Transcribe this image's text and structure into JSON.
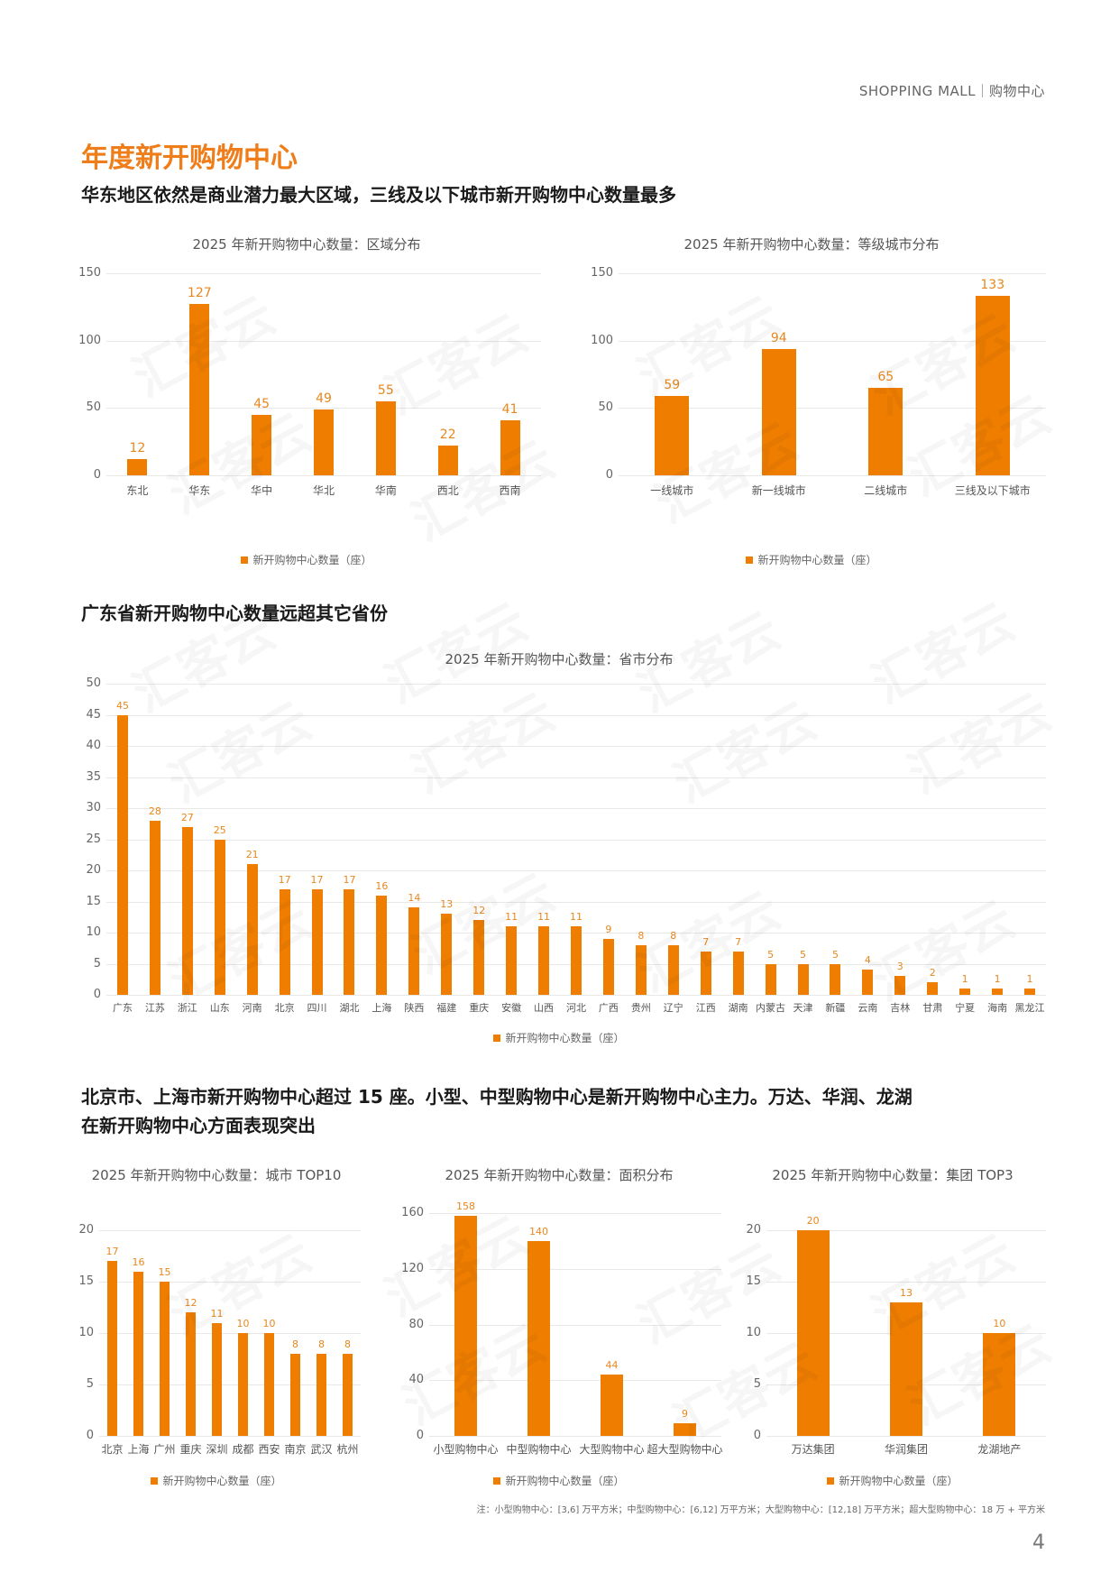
{
  "header": {
    "tag_en": "SHOPPING MALL",
    "tag_cn": "购物中心"
  },
  "page_title": "年度新开购物中心",
  "sections": {
    "s1_heading": "华东地区依然是商业潜力最大区域，三线及以下城市新开购物中心数量最多",
    "s2_heading": "广东省新开购物中心数量远超其它省份",
    "s3_heading_line1": "北京市、上海市新开购物中心超过 15 座。小型、中型购物中心是新开购物中心主力。万达、华润、龙湖",
    "s3_heading_line2": "在新开购物中心方面表现突出"
  },
  "watermark_text": "汇客云",
  "legend_label": "新开购物中心数量（座）",
  "footnote": "注：小型购物中心：[3,6] 万平方米；中型购物中心：[6,12] 万平方米；大型购物中心：[12,18] 万平方米；超大型购物中心：18 万 + 平方米",
  "page_number": "4",
  "colors": {
    "accent": "#ee7d1a",
    "bar": "#ee7d00",
    "label": "#e8871e"
  },
  "chart_data": [
    {
      "id": "region",
      "type": "bar",
      "title": "2025 年新开购物中心数量：区域分布",
      "categories": [
        "东北",
        "华东",
        "华中",
        "华北",
        "华南",
        "西北",
        "西南"
      ],
      "values": [
        12,
        127,
        45,
        49,
        55,
        22,
        41
      ],
      "yticks": [
        0,
        50,
        100,
        150
      ],
      "ylim": [
        0,
        150
      ],
      "legend": "新开购物中心数量（座）",
      "xlabel": "",
      "ylabel": "",
      "grid": true,
      "legend_position": "bottom"
    },
    {
      "id": "tier",
      "type": "bar",
      "title": "2025 年新开购物中心数量：等级城市分布",
      "categories": [
        "一线城市",
        "新一线城市",
        "二线城市",
        "三线及以下城市"
      ],
      "values": [
        59,
        94,
        65,
        133
      ],
      "yticks": [
        0,
        50,
        100,
        150
      ],
      "ylim": [
        0,
        150
      ],
      "legend": "新开购物中心数量（座）",
      "xlabel": "",
      "ylabel": "",
      "grid": true,
      "legend_position": "bottom"
    },
    {
      "id": "province",
      "type": "bar",
      "title": "2025 年新开购物中心数量：省市分布",
      "categories": [
        "广东",
        "江苏",
        "浙江",
        "山东",
        "河南",
        "北京",
        "四川",
        "湖北",
        "上海",
        "陕西",
        "福建",
        "重庆",
        "安徽",
        "山西",
        "河北",
        "广西",
        "贵州",
        "辽宁",
        "江西",
        "湖南",
        "内蒙古",
        "天津",
        "新疆",
        "云南",
        "吉林",
        "甘肃",
        "宁夏",
        "海南",
        "黑龙江"
      ],
      "values": [
        45,
        28,
        27,
        25,
        21,
        17,
        17,
        17,
        16,
        14,
        13,
        12,
        11,
        11,
        11,
        9,
        8,
        8,
        7,
        7,
        5,
        5,
        5,
        4,
        3,
        2,
        1,
        1,
        1
      ],
      "yticks": [
        0,
        5,
        10,
        15,
        20,
        25,
        30,
        35,
        40,
        45,
        50
      ],
      "ylim": [
        0,
        50
      ],
      "legend": "新开购物中心数量（座）",
      "xlabel": "",
      "ylabel": "",
      "grid": true,
      "legend_position": "bottom"
    },
    {
      "id": "city",
      "type": "bar",
      "title": "2025 年新开购物中心数量：城市 TOP10",
      "categories": [
        "北京",
        "上海",
        "广州",
        "重庆",
        "深圳",
        "成都",
        "西安",
        "南京",
        "武汉",
        "杭州"
      ],
      "values": [
        17,
        16,
        15,
        12,
        11,
        10,
        10,
        8,
        8,
        8
      ],
      "yticks": [
        0,
        5,
        10,
        15,
        20
      ],
      "ylim": [
        0,
        20
      ],
      "legend": "新开购物中心数量（座）",
      "xlabel": "",
      "ylabel": "",
      "grid": true,
      "legend_position": "bottom"
    },
    {
      "id": "area",
      "type": "bar",
      "title": "2025 年新开购物中心数量：面积分布",
      "categories": [
        "小型购物中心",
        "中型购物中心",
        "大型购物中心",
        "超大型购物中心"
      ],
      "values": [
        158,
        140,
        44,
        9
      ],
      "yticks": [
        0,
        40,
        80,
        120,
        160
      ],
      "ylim": [
        0,
        160
      ],
      "legend": "新开购物中心数量（座）",
      "xlabel": "",
      "ylabel": "",
      "grid": true,
      "legend_position": "bottom"
    },
    {
      "id": "group",
      "type": "bar",
      "title": "2025 年新开购物中心数量：集团 TOP3",
      "categories": [
        "万达集团",
        "华润集团",
        "龙湖地产"
      ],
      "values": [
        20,
        13,
        10
      ],
      "yticks": [
        0,
        5,
        10,
        15,
        20
      ],
      "ylim": [
        0,
        20
      ],
      "legend": "新开购物中心数量（座）",
      "xlabel": "",
      "ylabel": "",
      "grid": true,
      "legend_position": "bottom"
    }
  ]
}
